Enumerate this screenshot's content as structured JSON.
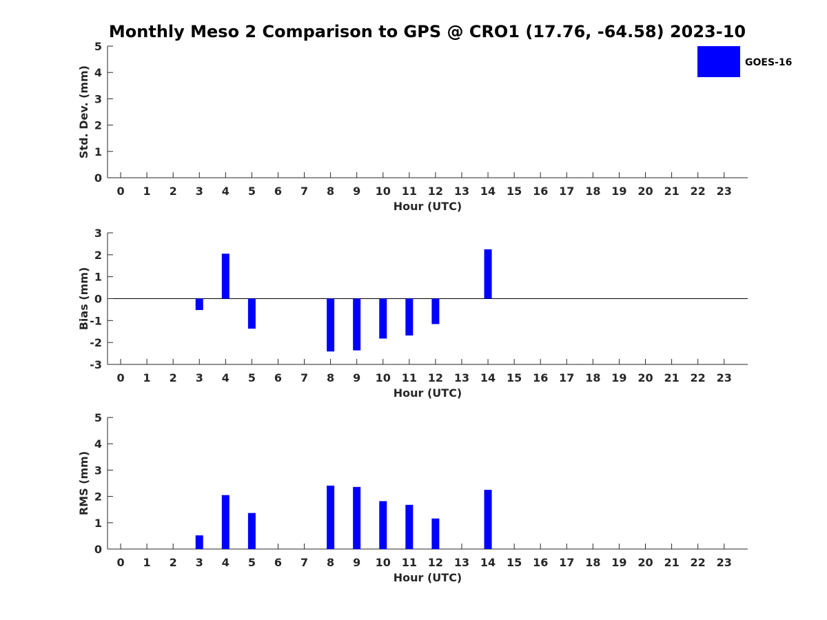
{
  "title": "Monthly Meso 2 Comparison to GPS @ CRO1 (17.76, -64.58) 2023-10",
  "legend": {
    "label": "GOES-16",
    "color": "#0000ff"
  },
  "chart_data": [
    {
      "type": "bar",
      "name": "std_dev",
      "xlabel": "Hour (UTC)",
      "ylabel": "Std. Dev. (mm)",
      "x": [
        0,
        1,
        2,
        3,
        4,
        5,
        6,
        7,
        8,
        9,
        10,
        11,
        12,
        13,
        14,
        15,
        16,
        17,
        18,
        19,
        20,
        21,
        22,
        23
      ],
      "xlim": [
        -0.5,
        23.9
      ],
      "ylim": [
        0,
        5
      ],
      "yticks": [
        0,
        1,
        2,
        3,
        4,
        5
      ],
      "values": [
        null,
        null,
        null,
        0,
        0,
        0,
        null,
        null,
        0,
        0,
        0,
        0,
        0,
        null,
        0,
        null,
        null,
        null,
        null,
        null,
        null,
        null,
        null,
        null
      ],
      "zero_line": false,
      "legend": "top-right"
    },
    {
      "type": "bar",
      "name": "bias",
      "xlabel": "Hour (UTC)",
      "ylabel": "Bias (mm)",
      "x": [
        0,
        1,
        2,
        3,
        4,
        5,
        6,
        7,
        8,
        9,
        10,
        11,
        12,
        13,
        14,
        15,
        16,
        17,
        18,
        19,
        20,
        21,
        22,
        23
      ],
      "xlim": [
        -0.5,
        23.9
      ],
      "ylim": [
        -3,
        3
      ],
      "yticks": [
        -3,
        -2,
        -1,
        0,
        1,
        2,
        3
      ],
      "values": [
        null,
        null,
        null,
        -0.52,
        2.05,
        -1.37,
        null,
        null,
        -2.41,
        -2.36,
        -1.82,
        -1.68,
        -1.16,
        null,
        2.25,
        null,
        null,
        null,
        null,
        null,
        null,
        null,
        null,
        null
      ],
      "zero_line": true
    },
    {
      "type": "bar",
      "name": "rms",
      "xlabel": "Hour (UTC)",
      "ylabel": "RMS (mm)",
      "x": [
        0,
        1,
        2,
        3,
        4,
        5,
        6,
        7,
        8,
        9,
        10,
        11,
        12,
        13,
        14,
        15,
        16,
        17,
        18,
        19,
        20,
        21,
        22,
        23
      ],
      "xlim": [
        -0.5,
        23.9
      ],
      "ylim": [
        0,
        5
      ],
      "yticks": [
        0,
        1,
        2,
        3,
        4,
        5
      ],
      "values": [
        null,
        null,
        null,
        0.52,
        2.05,
        1.37,
        null,
        null,
        2.41,
        2.36,
        1.82,
        1.68,
        1.16,
        null,
        2.25,
        null,
        null,
        null,
        null,
        null,
        null,
        null,
        null,
        null
      ],
      "zero_line": false
    }
  ]
}
